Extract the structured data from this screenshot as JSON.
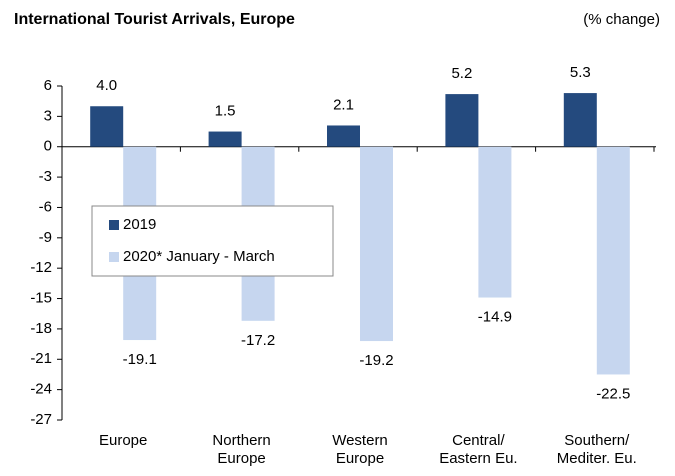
{
  "chart_data": {
    "type": "bar",
    "title": "International Tourist Arrivals, Europe",
    "subtitle": "(% change)",
    "categories": [
      "Europe",
      "Northern\nEurope",
      "Western\nEurope",
      "Central/\nEastern Eu.",
      "Southern/\nMediter. Eu."
    ],
    "series": [
      {
        "name": "2019",
        "color": "#244a7e",
        "values": [
          4.0,
          1.5,
          2.1,
          5.2,
          5.3
        ],
        "value_labels": [
          "4.0",
          "1.5",
          "2.1",
          "5.2",
          "5.3"
        ]
      },
      {
        "name": "2020* January - March",
        "color": "#c6d6ef",
        "values": [
          -19.1,
          -17.2,
          -19.2,
          -14.9,
          -22.5
        ]
      }
    ],
    "ylim": [
      -27,
      6
    ],
    "yticks": [
      6,
      3,
      0,
      -3,
      -6,
      -9,
      -12,
      -15,
      -18,
      -21,
      -24,
      -27
    ],
    "grid": false
  }
}
